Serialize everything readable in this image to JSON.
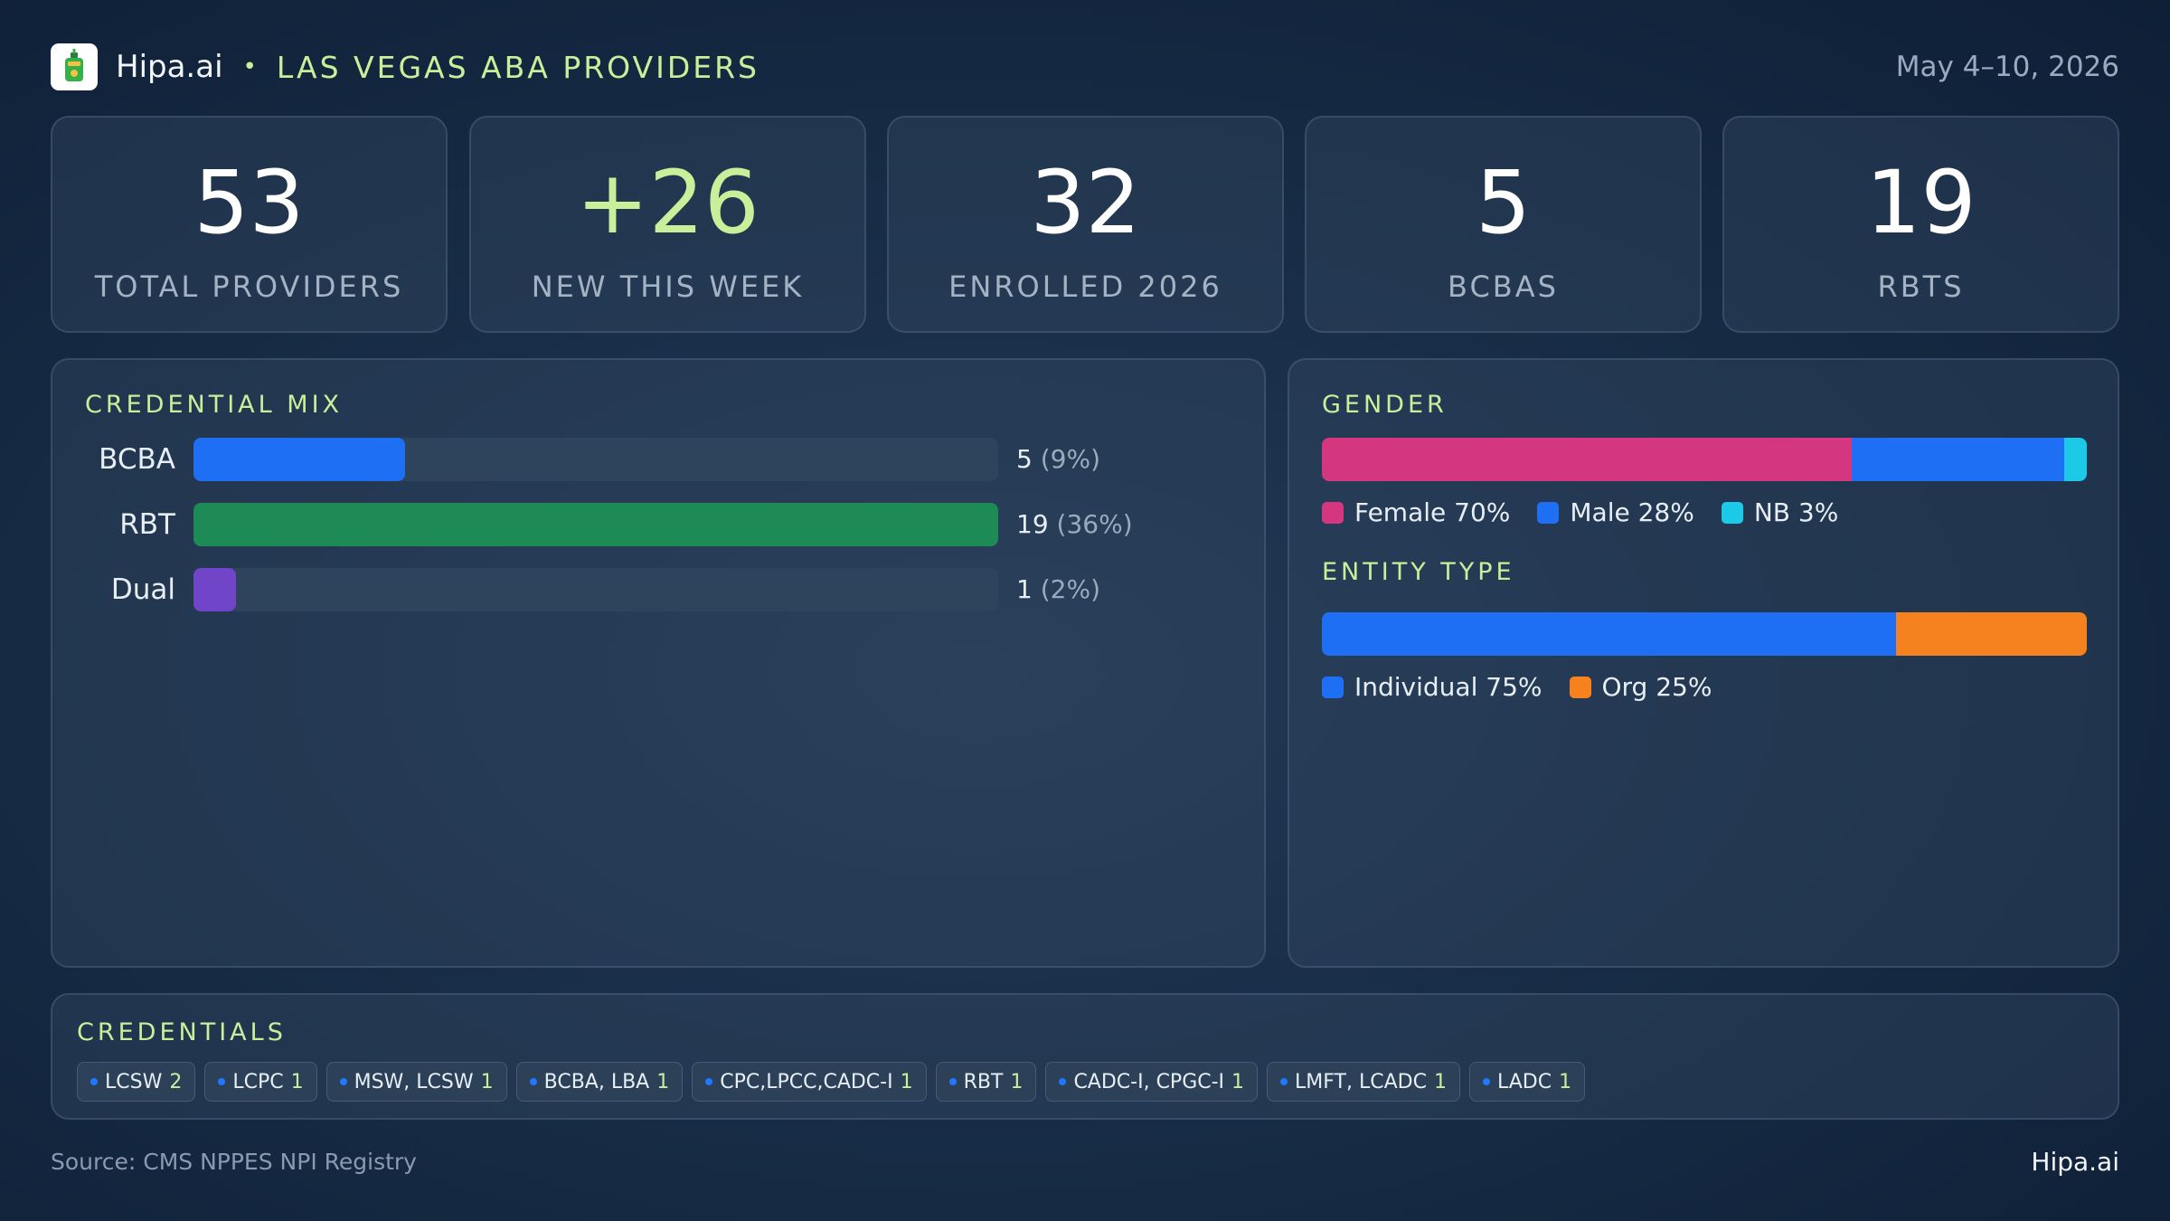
{
  "header": {
    "brand": "Hipa.ai",
    "separator": "•",
    "title": "LAS VEGAS ABA PROVIDERS",
    "date": "May 4–10, 2026"
  },
  "stats": [
    {
      "value": "53",
      "label": "TOTAL PROVIDERS"
    },
    {
      "value": "+26",
      "label": "NEW THIS WEEK"
    },
    {
      "value": "32",
      "label": "ENROLLED 2026"
    },
    {
      "value": "5",
      "label": "BCBAS"
    },
    {
      "value": "19",
      "label": "RBTS"
    }
  ],
  "chart_data": [
    {
      "type": "bar",
      "orientation": "horizontal",
      "title": "CREDENTIAL MIX",
      "categories": [
        "BCBA",
        "RBT",
        "Dual"
      ],
      "values": [
        5,
        19,
        1
      ],
      "percent_labels": [
        "(9%)",
        "(36%)",
        "(2%)"
      ],
      "colors": [
        "#1f6ff5",
        "#1e8b57",
        "#7045c8"
      ]
    },
    {
      "type": "bar",
      "orientation": "horizontal-stacked-100",
      "title": "GENDER",
      "series": [
        {
          "name": "Female",
          "value": 70,
          "label": "Female 70%",
          "color": "#d4377f"
        },
        {
          "name": "Male",
          "value": 28,
          "label": "Male 28%",
          "color": "#1f6ff5"
        },
        {
          "name": "NB",
          "value": 3,
          "label": "NB 3%",
          "color": "#1ccae8"
        }
      ]
    },
    {
      "type": "bar",
      "orientation": "horizontal-stacked-100",
      "title": "ENTITY TYPE",
      "series": [
        {
          "name": "Individual",
          "value": 75,
          "label": "Individual 75%",
          "color": "#1f6ff5"
        },
        {
          "name": "Org",
          "value": 25,
          "label": "Org 25%",
          "color": "#f5821f"
        }
      ]
    }
  ],
  "credentials": {
    "title": "CREDENTIALS",
    "items": [
      {
        "name": "LCSW",
        "count": "2"
      },
      {
        "name": "LCPC",
        "count": "1"
      },
      {
        "name": "MSW, LCSW",
        "count": "1"
      },
      {
        "name": "BCBA, LBA",
        "count": "1"
      },
      {
        "name": "CPC,LPCC,CADC-I",
        "count": "1"
      },
      {
        "name": "RBT",
        "count": "1"
      },
      {
        "name": "CADC-I, CPGC-I",
        "count": "1"
      },
      {
        "name": "LMFT, LCADC",
        "count": "1"
      },
      {
        "name": "LADC",
        "count": "1"
      }
    ]
  },
  "footer": {
    "source": "Source: CMS NPPES NPI Registry",
    "brand": "Hipa.ai"
  }
}
